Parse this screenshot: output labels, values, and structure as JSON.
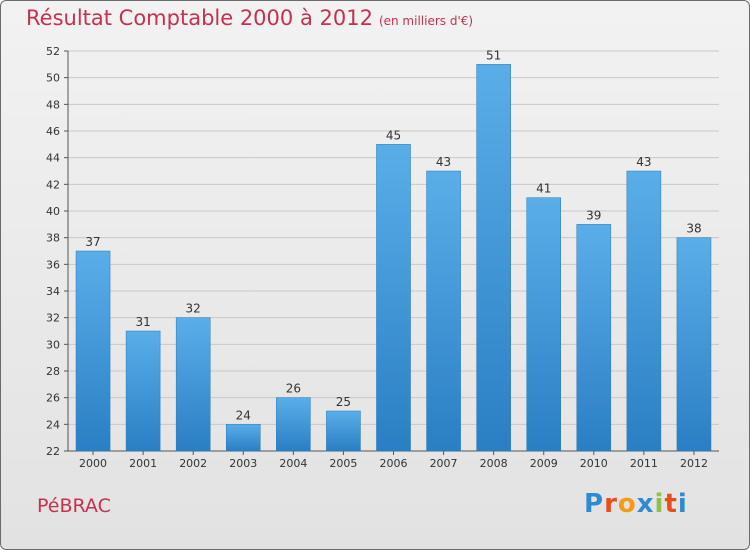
{
  "header": {
    "title": "Résultat Comptable 2000 à 2012",
    "subtitle": "(en milliers d'€)"
  },
  "commune": "PéBRAC",
  "logo": {
    "text": "Proxiti",
    "letters": [
      "P",
      "r",
      "o",
      "x",
      "i",
      "t",
      "i"
    ],
    "colors": [
      "#2e8bd1",
      "#e94e1b",
      "#f39c12",
      "#2e8bd1",
      "#8bc34a",
      "#e94e1b",
      "#2e8bd1"
    ]
  },
  "colors": {
    "bar_top": "#5aaee8",
    "bar_bottom": "#2a7fc4",
    "grid": "#c8c8c8",
    "accent": "#c8304f"
  },
  "chart_data": {
    "type": "bar",
    "title": "Résultat Comptable 2000 à 2012",
    "subtitle": "(en milliers d'€)",
    "xlabel": "",
    "ylabel": "",
    "categories": [
      "2000",
      "2001",
      "2002",
      "2003",
      "2004",
      "2005",
      "2006",
      "2007",
      "2008",
      "2009",
      "2010",
      "2011",
      "2012"
    ],
    "values": [
      37,
      31,
      32,
      24,
      26,
      25,
      45,
      43,
      51,
      41,
      39,
      43,
      38
    ],
    "ylim": [
      22,
      52
    ],
    "yticks": [
      22,
      24,
      26,
      28,
      30,
      32,
      34,
      36,
      38,
      40,
      42,
      44,
      46,
      48,
      50,
      52
    ],
    "grid": true
  }
}
